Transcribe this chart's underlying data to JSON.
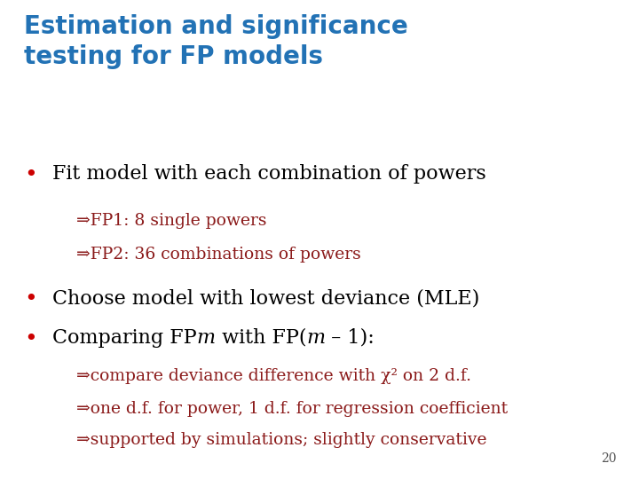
{
  "title_line1": "Estimation and significance",
  "title_line2": "testing for FP models",
  "title_color": "#2272B5",
  "background_color": "#FFFFFF",
  "bullet_color": "#000000",
  "bullet_dot_color": "#CC0000",
  "sub_color": "#8B1A1A",
  "page_number": "20",
  "bullet1": "Fit model with each combination of powers",
  "sub1a": "⇒FP1: 8 single powers",
  "sub1b": "⇒FP2: 36 combinations of powers",
  "bullet2": "Choose model with lowest deviance (MLE)",
  "bullet3_parts": [
    [
      "Comparing FP",
      false
    ],
    [
      "m",
      true
    ],
    [
      " with FP(",
      false
    ],
    [
      "m",
      true
    ],
    [
      " – 1):",
      false
    ]
  ],
  "sub3a": "⇒compare deviance difference with χ² on 2 d.f.",
  "sub3b": "⇒one d.f. for power, 1 d.f. for regression coefficient",
  "sub3c": "⇒supported by simulations; slightly conservative",
  "title_fontsize": 20,
  "bullet_fontsize": 16,
  "sub_fontsize": 13.5
}
